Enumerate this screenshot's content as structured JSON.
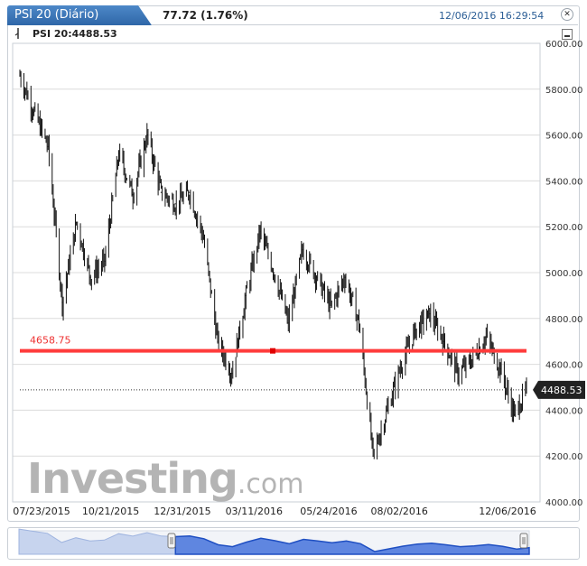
{
  "header": {
    "tab_title": "PSI 20 (Diário)",
    "price_change": "77.72 (1.76%)",
    "timestamp": "12/06/2016 16:29:54"
  },
  "legend": {
    "series_label": "PSI 20:4488.53"
  },
  "watermark": {
    "brand": "Investing",
    "suffix": ".com"
  },
  "colors": {
    "tab": "#3a74b8",
    "hline": "#ff3b3b",
    "price_tag": "#222222",
    "navigator": "#2f5fd0"
  },
  "icons": [
    "close-icon",
    "minimize-icon",
    "draw-tool-icon"
  ],
  "chart_data": {
    "type": "line",
    "ylim": [
      4000,
      6000
    ],
    "yticks": [
      "6000.00",
      "5800.00",
      "5600.00",
      "5400.00",
      "5200.00",
      "5000.00",
      "4800.00",
      "4600.00",
      "4400.00",
      "4200.00",
      "4000.00"
    ],
    "xtick_labels": [
      "07/23/2015",
      "10/21/2015",
      "12/31/2015",
      "03/11/2016",
      "05/24/2016",
      "08/02/2016",
      "12/06/2016"
    ],
    "x": [
      "07/23/2015",
      "08/06/2015",
      "08/20/2015",
      "09/03/2015",
      "09/17/2015",
      "10/01/2015",
      "10/15/2015",
      "10/29/2015",
      "11/12/2015",
      "11/26/2015",
      "12/10/2015",
      "12/24/2015",
      "01/07/2016",
      "01/21/2016",
      "02/04/2016",
      "02/18/2016",
      "03/03/2016",
      "03/17/2016",
      "03/31/2016",
      "04/14/2016",
      "04/28/2016",
      "05/12/2016",
      "05/26/2016",
      "06/09/2016",
      "06/23/2016",
      "07/07/2016",
      "07/21/2016",
      "08/04/2016",
      "08/18/2016",
      "09/01/2016",
      "09/15/2016",
      "09/29/2016",
      "10/13/2016",
      "10/27/2016",
      "11/10/2016",
      "11/24/2016",
      "12/06/2016"
    ],
    "values": [
      5860,
      5700,
      5550,
      4870,
      5220,
      4980,
      5050,
      5520,
      5340,
      5600,
      5350,
      5300,
      5350,
      5150,
      4700,
      4560,
      4900,
      5180,
      5000,
      4780,
      5100,
      4980,
      4850,
      4980,
      4780,
      4200,
      4400,
      4600,
      4750,
      4820,
      4700,
      4560,
      4620,
      4720,
      4580,
      4380,
      4488.53
    ],
    "hline": {
      "value": 4658.75,
      "label": "4658.75"
    },
    "last_value": {
      "value": 4488.53,
      "label": "4488.53"
    }
  }
}
